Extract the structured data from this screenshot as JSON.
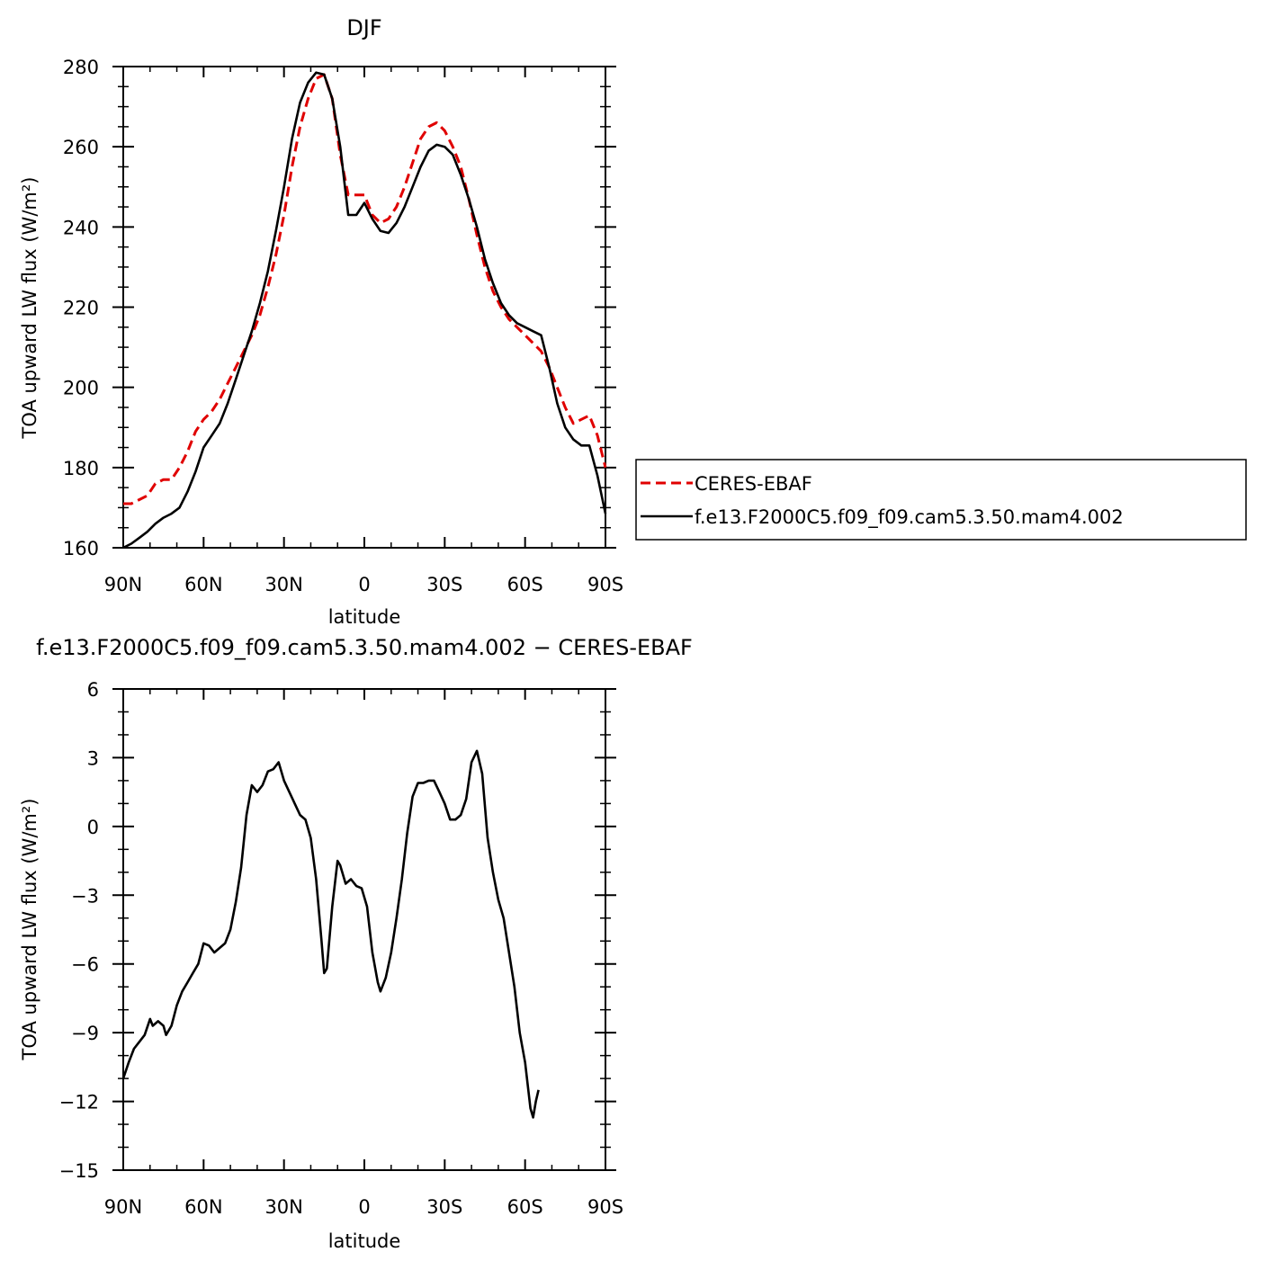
{
  "colors": {
    "ceres": "#e00000",
    "model": "#000000",
    "axis": "#000000"
  },
  "legend": {
    "entries": [
      {
        "label": "CERES-EBAF",
        "color": "#e00000",
        "dash": true
      },
      {
        "label": "f.e13.F2000C5.f09_f09.cam5.3.50.mam4.002",
        "color": "#000000",
        "dash": false
      }
    ]
  },
  "chart_data": [
    {
      "type": "line",
      "title": "DJF",
      "xlabel": "latitude",
      "ylabel": "TOA upward LW flux (W/m²)",
      "xlim": [
        -90,
        90
      ],
      "ylim": [
        160,
        280
      ],
      "xticks": [
        -90,
        -60,
        -30,
        0,
        30,
        60,
        90
      ],
      "xticklabels": [
        "90N",
        "60N",
        "30N",
        "0",
        "30S",
        "60S",
        "90S"
      ],
      "yticks": [
        160,
        180,
        200,
        220,
        240,
        260,
        280
      ],
      "yticklabels": [
        "160",
        "180",
        "200",
        "220",
        "240",
        "260",
        "280"
      ],
      "grid": false,
      "legend_position": "right",
      "series": [
        {
          "name": "CERES-EBAF",
          "style": "dashed",
          "color": "#e00000",
          "points": [
            [
              -90,
              171
            ],
            [
              -87,
              171
            ],
            [
              -84,
              172
            ],
            [
              -81,
              173
            ],
            [
              -78,
              176
            ],
            [
              -75,
              177
            ],
            [
              -72,
              177
            ],
            [
              -69,
              180
            ],
            [
              -66,
              184
            ],
            [
              -63,
              189
            ],
            [
              -60,
              192
            ],
            [
              -57,
              194
            ],
            [
              -54,
              197
            ],
            [
              -51,
              201
            ],
            [
              -48,
              205
            ],
            [
              -45,
              209
            ],
            [
              -42,
              213
            ],
            [
              -39,
              218
            ],
            [
              -36,
              225
            ],
            [
              -33,
              233
            ],
            [
              -30,
              243
            ],
            [
              -27,
              255
            ],
            [
              -24,
              265
            ],
            [
              -21,
              272
            ],
            [
              -18,
              277
            ],
            [
              -15,
              278
            ],
            [
              -12,
              272
            ],
            [
              -9,
              258
            ],
            [
              -6,
              248
            ],
            [
              -3,
              248
            ],
            [
              0,
              248
            ],
            [
              3,
              243
            ],
            [
              6,
              241
            ],
            [
              9,
              242
            ],
            [
              12,
              245
            ],
            [
              15,
              250
            ],
            [
              18,
              256
            ],
            [
              21,
              262
            ],
            [
              24,
              265
            ],
            [
              27,
              266
            ],
            [
              30,
              264
            ],
            [
              33,
              260
            ],
            [
              36,
              255
            ],
            [
              39,
              247
            ],
            [
              42,
              238
            ],
            [
              45,
              230
            ],
            [
              48,
              224
            ],
            [
              51,
              220
            ],
            [
              54,
              217
            ],
            [
              57,
              215
            ],
            [
              60,
              213
            ],
            [
              63,
              211
            ],
            [
              66,
              209
            ],
            [
              69,
              205
            ],
            [
              72,
              200
            ],
            [
              75,
              195
            ],
            [
              78,
              191
            ],
            [
              81,
              192
            ],
            [
              84,
              193
            ],
            [
              87,
              188
            ],
            [
              90,
              180
            ]
          ]
        },
        {
          "name": "f.e13.F2000C5.f09_f09.cam5.3.50.mam4.002",
          "style": "solid",
          "color": "#000000",
          "points": [
            [
              -90,
              160
            ],
            [
              -87,
              161
            ],
            [
              -84,
              162.5
            ],
            [
              -81,
              164
            ],
            [
              -78,
              166
            ],
            [
              -75,
              167.5
            ],
            [
              -72,
              168.5
            ],
            [
              -69,
              170
            ],
            [
              -66,
              174
            ],
            [
              -63,
              179
            ],
            [
              -60,
              185
            ],
            [
              -57,
              188
            ],
            [
              -54,
              191
            ],
            [
              -51,
              196
            ],
            [
              -48,
              202
            ],
            [
              -45,
              208
            ],
            [
              -42,
              214
            ],
            [
              -39,
              221
            ],
            [
              -36,
              229
            ],
            [
              -33,
              239
            ],
            [
              -30,
              250
            ],
            [
              -27,
              262
            ],
            [
              -24,
              271
            ],
            [
              -21,
              276
            ],
            [
              -18,
              278.5
            ],
            [
              -15,
              278
            ],
            [
              -12,
              272
            ],
            [
              -9,
              260
            ],
            [
              -6,
              243
            ],
            [
              -3,
              243
            ],
            [
              0,
              246
            ],
            [
              3,
              242
            ],
            [
              6,
              239
            ],
            [
              9,
              238.5
            ],
            [
              12,
              241
            ],
            [
              15,
              245
            ],
            [
              18,
              250
            ],
            [
              21,
              255
            ],
            [
              24,
              259
            ],
            [
              27,
              260.5
            ],
            [
              30,
              260
            ],
            [
              33,
              258
            ],
            [
              36,
              253
            ],
            [
              39,
              247
            ],
            [
              42,
              240
            ],
            [
              45,
              232
            ],
            [
              48,
              226
            ],
            [
              51,
              221
            ],
            [
              54,
              218
            ],
            [
              57,
              216
            ],
            [
              60,
              215
            ],
            [
              63,
              214
            ],
            [
              66,
              213
            ],
            [
              69,
              205
            ],
            [
              72,
              196
            ],
            [
              75,
              190
            ],
            [
              78,
              187
            ],
            [
              81,
              185.5
            ],
            [
              84,
              185.5
            ],
            [
              87,
              178
            ],
            [
              90,
              168.5
            ]
          ]
        }
      ]
    },
    {
      "type": "line",
      "title": "f.e13.F2000C5.f09_f09.cam5.3.50.mam4.002 − CERES-EBAF",
      "xlabel": "latitude",
      "ylabel": "TOA upward LW flux (W/m²)",
      "xlim": [
        -90,
        90
      ],
      "ylim": [
        -15,
        6
      ],
      "xticks": [
        -90,
        -60,
        -30,
        0,
        30,
        60,
        90
      ],
      "xticklabels": [
        "90N",
        "60N",
        "30N",
        "0",
        "30S",
        "60S",
        "90S"
      ],
      "yticks": [
        -15,
        -12,
        -9,
        -6,
        -3,
        0,
        3,
        6
      ],
      "yticklabels": [
        "−15",
        "−12",
        "−9",
        "−6",
        "−3",
        "0",
        "3",
        "6"
      ],
      "grid": false,
      "series": [
        {
          "name": "",
          "style": "solid",
          "color": "#000000",
          "points": [
            [
              -90,
              -11
            ],
            [
              -88,
              -10.3
            ],
            [
              -86,
              -9.7
            ],
            [
              -84,
              -9.4
            ],
            [
              -82,
              -9.1
            ],
            [
              -80,
              -8.4
            ],
            [
              -79,
              -8.7
            ],
            [
              -77,
              -8.5
            ],
            [
              -75,
              -8.7
            ],
            [
              -74,
              -9.1
            ],
            [
              -72,
              -8.7
            ],
            [
              -70,
              -7.8
            ],
            [
              -68,
              -7.2
            ],
            [
              -66,
              -6.8
            ],
            [
              -64,
              -6.4
            ],
            [
              -62,
              -6.0
            ],
            [
              -60,
              -5.1
            ],
            [
              -58,
              -5.2
            ],
            [
              -56,
              -5.5
            ],
            [
              -54,
              -5.3
            ],
            [
              -52,
              -5.1
            ],
            [
              -50,
              -4.5
            ],
            [
              -48,
              -3.3
            ],
            [
              -46,
              -1.8
            ],
            [
              -44,
              0.5
            ],
            [
              -42,
              1.8
            ],
            [
              -40,
              1.5
            ],
            [
              -38,
              1.8
            ],
            [
              -36,
              2.4
            ],
            [
              -34,
              2.5
            ],
            [
              -32,
              2.8
            ],
            [
              -30,
              2.0
            ],
            [
              -28,
              1.5
            ],
            [
              -26,
              1.0
            ],
            [
              -24,
              0.5
            ],
            [
              -22,
              0.3
            ],
            [
              -20,
              -0.5
            ],
            [
              -18,
              -2.3
            ],
            [
              -16,
              -5.0
            ],
            [
              -15,
              -6.4
            ],
            [
              -14,
              -6.2
            ],
            [
              -12,
              -3.5
            ],
            [
              -10,
              -1.5
            ],
            [
              -9,
              -1.7
            ],
            [
              -7,
              -2.5
            ],
            [
              -5,
              -2.3
            ],
            [
              -3,
              -2.6
            ],
            [
              -1,
              -2.7
            ],
            [
              1,
              -3.5
            ],
            [
              3,
              -5.5
            ],
            [
              5,
              -6.8
            ],
            [
              6,
              -7.2
            ],
            [
              8,
              -6.6
            ],
            [
              10,
              -5.5
            ],
            [
              12,
              -4.0
            ],
            [
              14,
              -2.3
            ],
            [
              16,
              -0.3
            ],
            [
              18,
              1.3
            ],
            [
              20,
              1.9
            ],
            [
              22,
              1.9
            ],
            [
              24,
              2.0
            ],
            [
              26,
              2.0
            ],
            [
              28,
              1.5
            ],
            [
              30,
              1.0
            ],
            [
              32,
              0.3
            ],
            [
              34,
              0.3
            ],
            [
              36,
              0.5
            ],
            [
              38,
              1.2
            ],
            [
              40,
              2.8
            ],
            [
              42,
              3.3
            ],
            [
              44,
              2.3
            ],
            [
              46,
              -0.5
            ],
            [
              48,
              -2.0
            ],
            [
              50,
              -3.2
            ],
            [
              52,
              -4.0
            ],
            [
              54,
              -5.5
            ],
            [
              56,
              -7.0
            ],
            [
              58,
              -9.0
            ],
            [
              60,
              -10.3
            ],
            [
              62,
              -12.3
            ],
            [
              63,
              -12.7
            ],
            [
              64,
              -12.0
            ],
            [
              65,
              -11.5
            ]
          ]
        }
      ]
    }
  ]
}
